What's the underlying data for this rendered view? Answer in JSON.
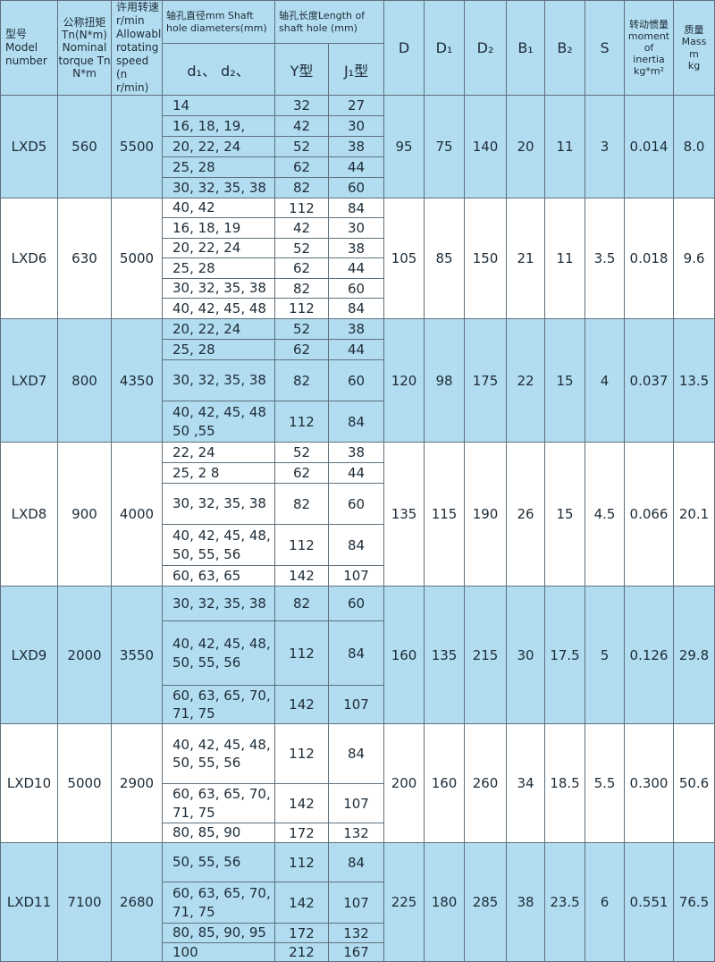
{
  "header": {
    "model": "型号\nModel\nnumber",
    "torque": "公称扭矩\nTn(N*m)\nNominal\ntorque Tn\nN*m",
    "speed": "许用转速\nr/min\nAllowable\nrotating\nspeed\n(n r/min)",
    "shaft_dia": "轴孔直径mm Shaft\nhole diameters(mm)",
    "shaft_len": "轴孔长度Length of\nshaft hole (mm)",
    "d_sub": "d₁、 d₂、",
    "y_type": "Y型",
    "j_type": "J₁型",
    "D": "D",
    "D1": "D₁",
    "D2": "D₂",
    "B1": "B₁",
    "B2": "B₂",
    "S": "S",
    "inertia": "转动惯量\nmoment\nof\ninertia\nkg*m²",
    "mass": "质量\nMass\nm\nkg"
  },
  "colors": {
    "band_blue": "#b2ddf1",
    "band_white": "#ffffff",
    "border": "#5f707c",
    "text": "#1d2b36"
  },
  "models": [
    {
      "model": "LXD5",
      "torque": "560",
      "speed": "5500",
      "rows": [
        {
          "d": "14",
          "y": "32",
          "j": "27"
        },
        {
          "d": "16, 18, 19,",
          "y": "42",
          "j": "30"
        },
        {
          "d": "20, 22, 24",
          "y": "52",
          "j": "38"
        },
        {
          "d": "25, 28",
          "y": "62",
          "j": "44"
        },
        {
          "d": "30, 32, 35, 38",
          "y": "82",
          "j": "60"
        }
      ],
      "D": "95",
      "D1": "75",
      "D2": "140",
      "B1": "20",
      "B2": "11",
      "S": "3",
      "inertia": "0.014",
      "mass": "8.0"
    },
    {
      "model": "LXD6",
      "torque": "630",
      "speed": "5000",
      "rows": [
        {
          "d": "40, 42",
          "y": "112",
          "j": "84"
        },
        {
          "d": "16, 18, 19",
          "y": "42",
          "j": "30"
        },
        {
          "d": "20, 22, 24",
          "y": "52",
          "j": "38"
        },
        {
          "d": "25, 28",
          "y": "62",
          "j": "44"
        },
        {
          "d": "30, 32, 35, 38",
          "y": "82",
          "j": "60"
        },
        {
          "d": "40, 42, 45, 48",
          "y": "112",
          "j": "84"
        }
      ],
      "D": "105",
      "D1": "85",
      "D2": "150",
      "B1": "21",
      "B2": "11",
      "S": "3.5",
      "inertia": "0.018",
      "mass": "9.6"
    },
    {
      "model": "LXD7",
      "torque": "800",
      "speed": "4350",
      "rows": [
        {
          "d": "20, 22, 24",
          "y": "52",
          "j": "38"
        },
        {
          "d": "25, 28",
          "y": "62",
          "j": "44"
        },
        {
          "d": "30, 32, 35, 38",
          "y": "82",
          "j": "60"
        },
        {
          "d": "40, 42, 45, 48\n50 ,55",
          "y": "112",
          "j": "84"
        }
      ],
      "D": "120",
      "D1": "98",
      "D2": "175",
      "B1": "22",
      "B2": "15",
      "S": "4",
      "inertia": "0.037",
      "mass": "13.5"
    },
    {
      "model": "LXD8",
      "torque": "900",
      "speed": "4000",
      "rows": [
        {
          "d": "22, 24",
          "y": "52",
          "j": "38"
        },
        {
          "d": "25, 2 8",
          "y": "62",
          "j": "44"
        },
        {
          "d": "30, 32, 35, 38",
          "y": "82",
          "j": "60"
        },
        {
          "d": "40, 42, 45, 48,\n50, 55, 56",
          "y": "112",
          "j": "84"
        },
        {
          "d": "60, 63, 65",
          "y": "142",
          "j": "107"
        }
      ],
      "D": "135",
      "D1": "115",
      "D2": "190",
      "B1": "26",
      "B2": "15",
      "S": "4.5",
      "inertia": "0.066",
      "mass": "20.1"
    },
    {
      "model": "LXD9",
      "torque": "2000",
      "speed": "3550",
      "rows": [
        {
          "d": "30, 32, 35, 38",
          "y": "82",
          "j": "60"
        },
        {
          "d": "40, 42, 45, 48,\n50, 55, 56",
          "y": "112",
          "j": "84"
        },
        {
          "d": "60, 63, 65, 70,\n71, 75",
          "y": "142",
          "j": "107"
        }
      ],
      "D": "160",
      "D1": "135",
      "D2": "215",
      "B1": "30",
      "B2": "17.5",
      "S": "5",
      "inertia": "0.126",
      "mass": "29.8"
    },
    {
      "model": "LXD10",
      "torque": "5000",
      "speed": "2900",
      "rows": [
        {
          "d": "40, 42, 45, 48,\n50, 55, 56",
          "y": "112",
          "j": "84"
        },
        {
          "d": "60, 63, 65, 70,\n71, 75",
          "y": "142",
          "j": "107"
        },
        {
          "d": "80, 85, 90",
          "y": "172",
          "j": "132"
        }
      ],
      "D": "200",
      "D1": "160",
      "D2": "260",
      "B1": "34",
      "B2": "18.5",
      "S": "5.5",
      "inertia": "0.300",
      "mass": "50.6"
    },
    {
      "model": "LXD11",
      "torque": "7100",
      "speed": "2680",
      "rows": [
        {
          "d": "50, 55, 56",
          "y": "112",
          "j": "84"
        },
        {
          "d": "60, 63, 65, 70,\n71, 75",
          "y": "142",
          "j": "107"
        },
        {
          "d": "80, 85, 90, 95",
          "y": "172",
          "j": "132"
        },
        {
          "d": "100",
          "y": "212",
          "j": "167"
        }
      ],
      "D": "225",
      "D1": "180",
      "D2": "285",
      "B1": "38",
      "B2": "23.5",
      "S": "6",
      "inertia": "0.551",
      "mass": "76.5"
    }
  ]
}
